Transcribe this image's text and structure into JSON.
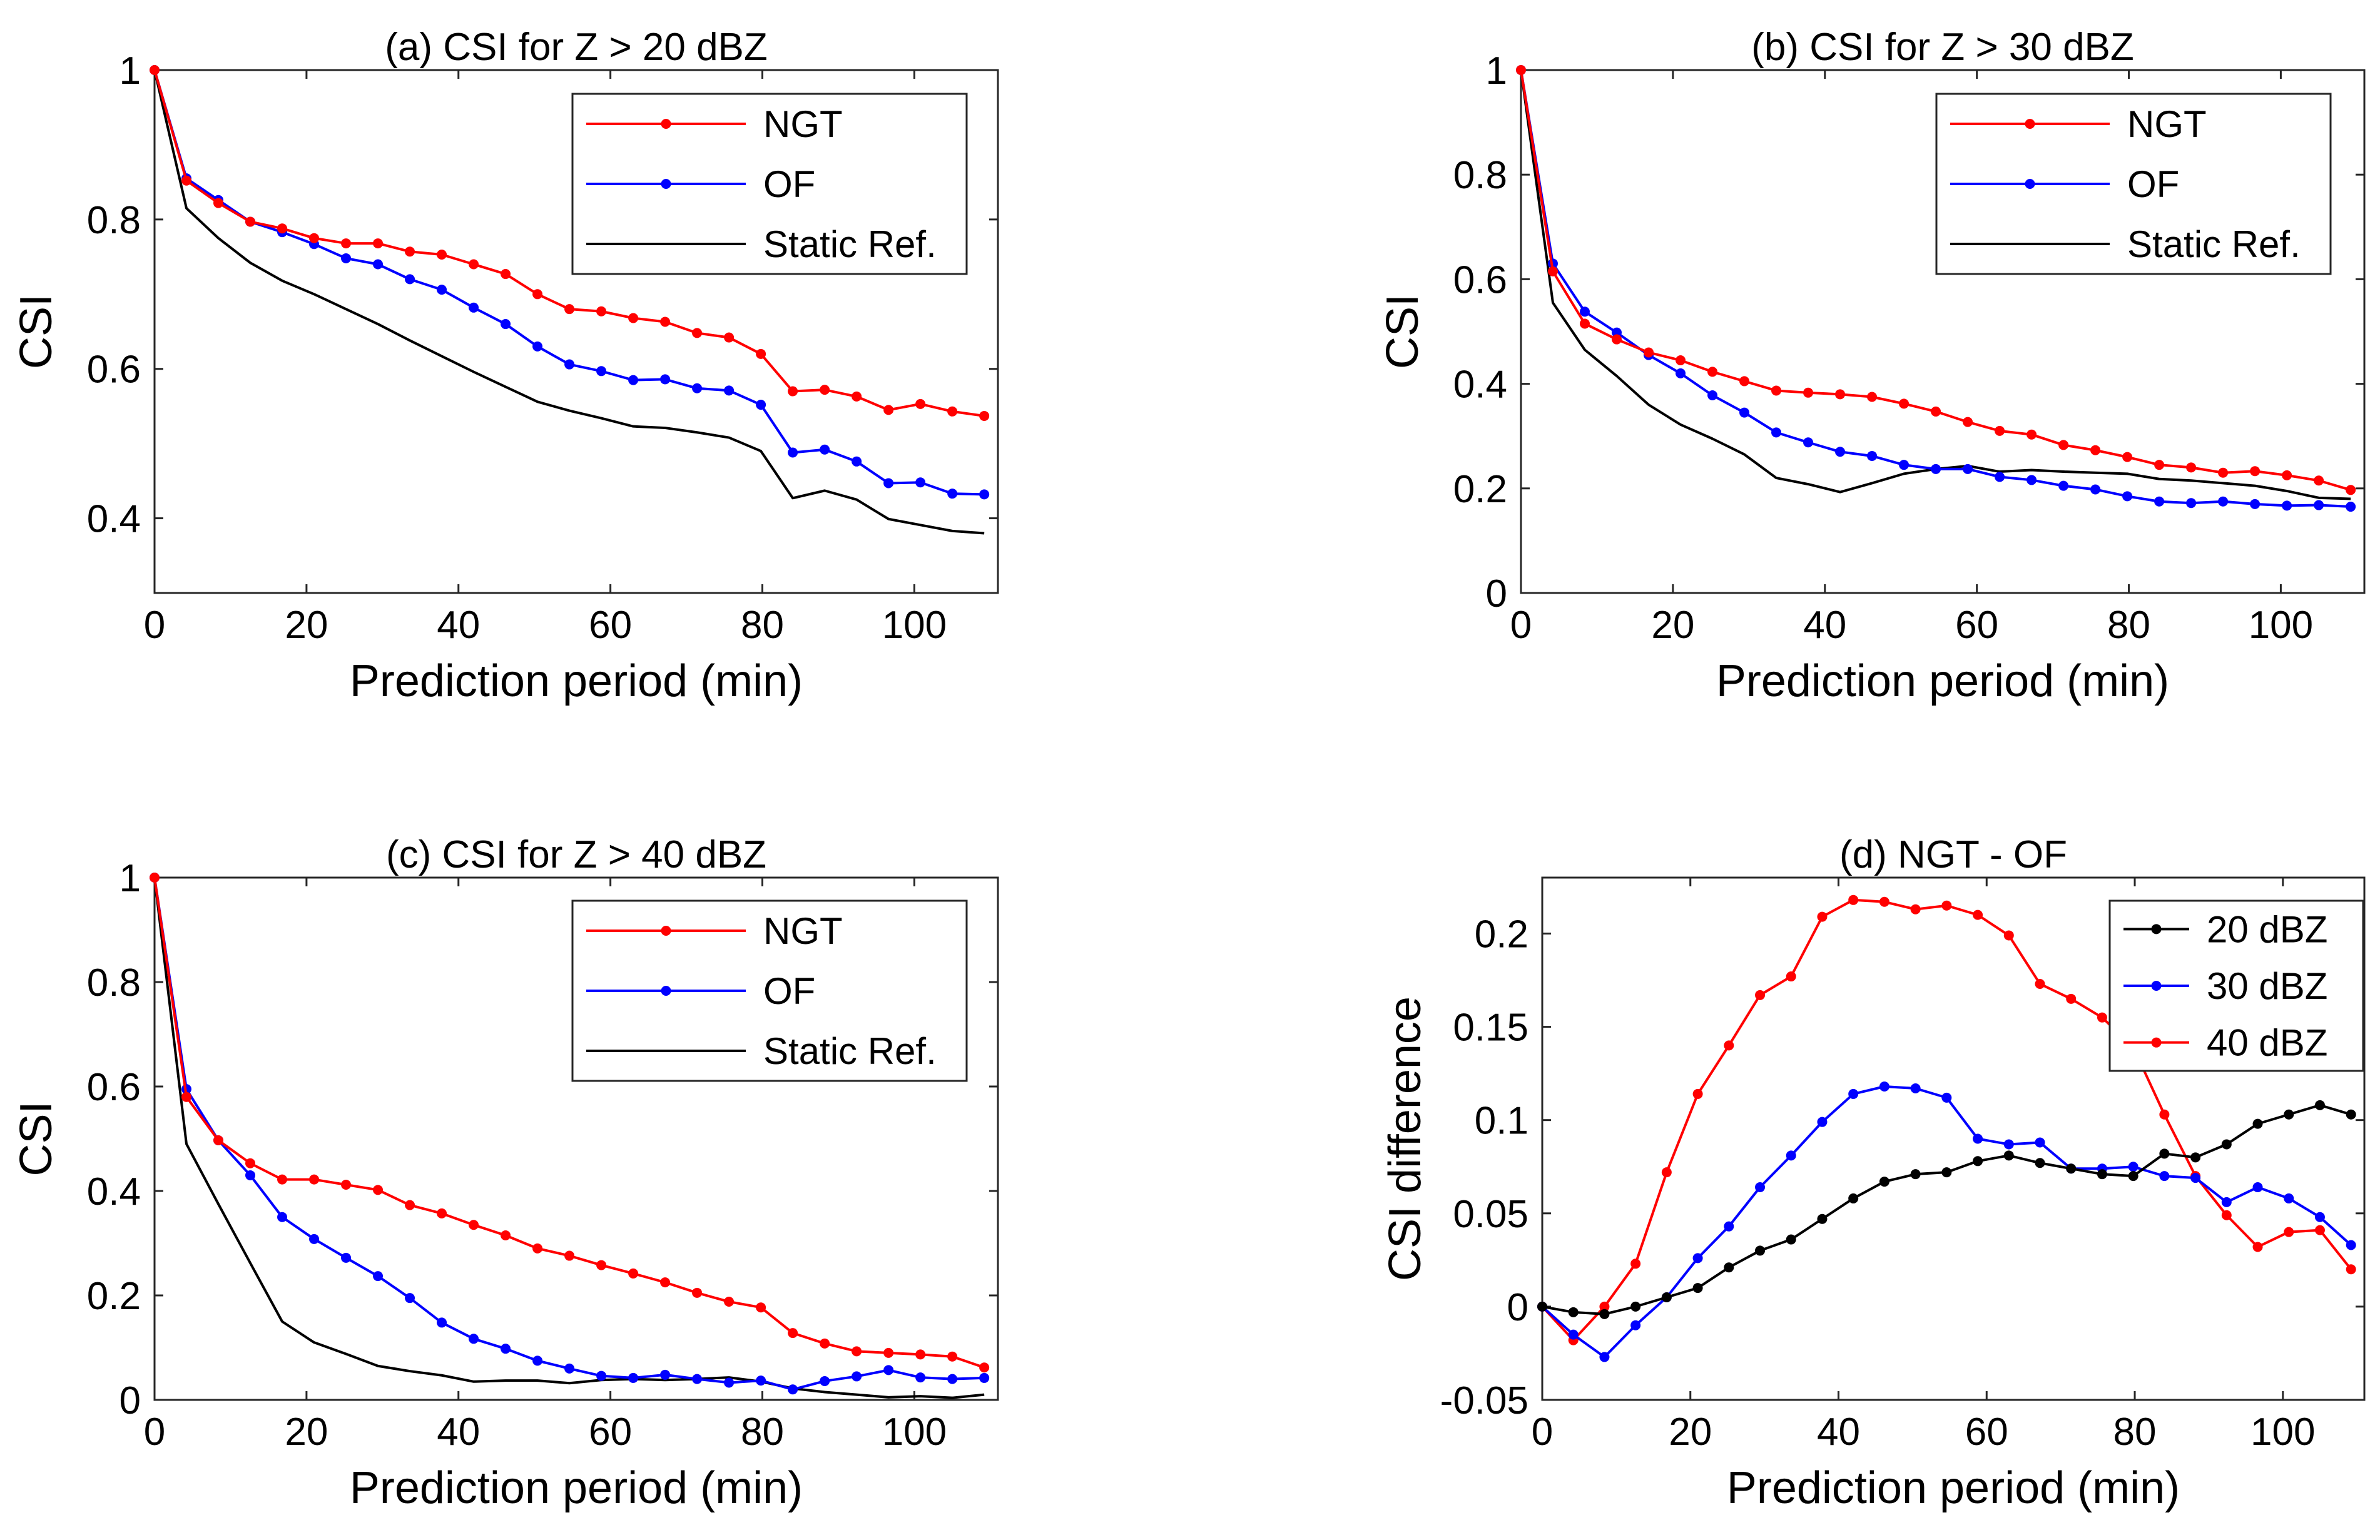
{
  "chart_data": [
    {
      "id": "a",
      "type": "line",
      "title": "(a) CSI for Z > 20 dBZ",
      "xlabel": "Prediction period (min)",
      "ylabel": "CSI",
      "xlim": [
        0,
        111
      ],
      "ylim": [
        0.3,
        1
      ],
      "xticks": [
        0,
        20,
        40,
        60,
        80,
        100
      ],
      "yticks": [
        0.4,
        0.6,
        0.8,
        1
      ],
      "ytick_labels": [
        "0.4",
        "0.6",
        "0.8",
        "1"
      ],
      "legend": "top-right",
      "x": [
        0,
        4.2,
        8.4,
        12.6,
        16.8,
        21,
        25.2,
        29.4,
        33.6,
        37.8,
        42,
        46.2,
        50.4,
        54.6,
        58.8,
        63,
        67.2,
        71.4,
        75.6,
        79.8,
        84,
        88.2,
        92.4,
        96.6,
        100.8,
        105,
        109.2
      ],
      "series": [
        {
          "name": "NGT",
          "color": "#ff0000",
          "markers": true,
          "values": [
            1.0,
            0.852,
            0.822,
            0.797,
            0.788,
            0.775,
            0.768,
            0.768,
            0.757,
            0.753,
            0.74,
            0.727,
            0.7,
            0.68,
            0.677,
            0.668,
            0.663,
            0.648,
            0.642,
            0.62,
            0.57,
            0.572,
            0.563,
            0.545,
            0.553,
            0.543,
            0.537
          ]
        },
        {
          "name": "OF",
          "color": "#0000ff",
          "markers": true,
          "values": [
            1.0,
            0.855,
            0.826,
            0.797,
            0.783,
            0.767,
            0.748,
            0.74,
            0.72,
            0.706,
            0.682,
            0.66,
            0.63,
            0.606,
            0.597,
            0.585,
            0.586,
            0.574,
            0.571,
            0.552,
            0.488,
            0.492,
            0.476,
            0.447,
            0.448,
            0.433,
            0.432
          ]
        },
        {
          "name": "Static Ref.",
          "color": "#000000",
          "markers": false,
          "values": [
            1.0,
            0.815,
            0.775,
            0.742,
            0.718,
            0.7,
            0.68,
            0.66,
            0.638,
            0.617,
            0.596,
            0.576,
            0.556,
            0.544,
            0.534,
            0.523,
            0.521,
            0.515,
            0.508,
            0.49,
            0.427,
            0.437,
            0.425,
            0.399,
            0.391,
            0.383,
            0.38
          ]
        }
      ]
    },
    {
      "id": "b",
      "type": "line",
      "title": "(b) CSI for Z > 30 dBZ",
      "xlabel": "Prediction period (min)",
      "ylabel": "CSI",
      "xlim": [
        0,
        111
      ],
      "ylim": [
        0,
        1
      ],
      "xticks": [
        0,
        20,
        40,
        60,
        80,
        100
      ],
      "yticks": [
        0,
        0.2,
        0.4,
        0.6,
        0.8,
        1
      ],
      "ytick_labels": [
        "0",
        "0.2",
        "0.4",
        "0.6",
        "0.8",
        "1"
      ],
      "legend": "top-right",
      "x": [
        0,
        4.2,
        8.4,
        12.6,
        16.8,
        21,
        25.2,
        29.4,
        33.6,
        37.8,
        42,
        46.2,
        50.4,
        54.6,
        58.8,
        63,
        67.2,
        71.4,
        75.6,
        79.8,
        84,
        88.2,
        92.4,
        96.6,
        100.8,
        105,
        109.2
      ],
      "series": [
        {
          "name": "NGT",
          "color": "#ff0000",
          "markers": true,
          "values": [
            1.0,
            0.615,
            0.515,
            0.485,
            0.46,
            0.445,
            0.423,
            0.405,
            0.387,
            0.383,
            0.38,
            0.375,
            0.362,
            0.347,
            0.327,
            0.31,
            0.303,
            0.283,
            0.273,
            0.26,
            0.245,
            0.24,
            0.23,
            0.233,
            0.225,
            0.215,
            0.197
          ]
        },
        {
          "name": "OF",
          "color": "#0000ff",
          "markers": true,
          "values": [
            1.0,
            0.63,
            0.538,
            0.498,
            0.455,
            0.42,
            0.378,
            0.345,
            0.307,
            0.288,
            0.27,
            0.262,
            0.245,
            0.237,
            0.237,
            0.222,
            0.216,
            0.205,
            0.198,
            0.185,
            0.175,
            0.172,
            0.175,
            0.17,
            0.167,
            0.168,
            0.165
          ]
        },
        {
          "name": "Static Ref.",
          "color": "#000000",
          "markers": false,
          "values": [
            1.0,
            0.555,
            0.465,
            0.415,
            0.36,
            0.322,
            0.295,
            0.265,
            0.22,
            0.208,
            0.193,
            0.21,
            0.228,
            0.237,
            0.243,
            0.232,
            0.235,
            0.232,
            0.23,
            0.228,
            0.218,
            0.215,
            0.21,
            0.205,
            0.195,
            0.182,
            0.18
          ]
        }
      ]
    },
    {
      "id": "c",
      "type": "line",
      "title": "(c) CSI for Z > 40 dBZ",
      "xlabel": "Prediction period (min)",
      "ylabel": "CSI",
      "xlim": [
        0,
        111
      ],
      "ylim": [
        0,
        1
      ],
      "xticks": [
        0,
        20,
        40,
        60,
        80,
        100
      ],
      "yticks": [
        0,
        0.2,
        0.4,
        0.6,
        0.8,
        1
      ],
      "ytick_labels": [
        "0",
        "0.2",
        "0.4",
        "0.6",
        "0.8",
        "1"
      ],
      "legend": "top-right",
      "x": [
        0,
        4.2,
        8.4,
        12.6,
        16.8,
        21,
        25.2,
        29.4,
        33.6,
        37.8,
        42,
        46.2,
        50.4,
        54.6,
        58.8,
        63,
        67.2,
        71.4,
        75.6,
        79.8,
        84,
        88.2,
        92.4,
        96.6,
        100.8,
        105,
        109.2
      ],
      "series": [
        {
          "name": "NGT",
          "color": "#ff0000",
          "markers": true,
          "values": [
            1.0,
            0.58,
            0.497,
            0.453,
            0.422,
            0.422,
            0.412,
            0.402,
            0.373,
            0.357,
            0.335,
            0.315,
            0.29,
            0.276,
            0.258,
            0.242,
            0.225,
            0.205,
            0.188,
            0.177,
            0.128,
            0.108,
            0.093,
            0.09,
            0.087,
            0.083,
            0.062
          ]
        },
        {
          "name": "OF",
          "color": "#0000ff",
          "markers": true,
          "values": [
            1.0,
            0.595,
            0.497,
            0.43,
            0.35,
            0.308,
            0.272,
            0.237,
            0.195,
            0.148,
            0.117,
            0.098,
            0.075,
            0.06,
            0.046,
            0.042,
            0.048,
            0.04,
            0.033,
            0.037,
            0.02,
            0.036,
            0.045,
            0.057,
            0.043,
            0.04,
            0.042
          ]
        },
        {
          "name": "Static Ref.",
          "color": "#000000",
          "markers": false,
          "values": [
            1.0,
            0.49,
            0.375,
            0.262,
            0.15,
            0.11,
            0.088,
            0.065,
            0.055,
            0.047,
            0.035,
            0.037,
            0.037,
            0.032,
            0.038,
            0.04,
            0.038,
            0.04,
            0.043,
            0.035,
            0.022,
            0.015,
            0.01,
            0.005,
            0.007,
            0.004,
            0.01
          ]
        }
      ]
    },
    {
      "id": "d",
      "type": "line",
      "title": "(d) NGT - OF",
      "xlabel": "Prediction period (min)",
      "ylabel": "CSI difference",
      "xlim": [
        0,
        111
      ],
      "ylim": [
        -0.05,
        0.23
      ],
      "xticks": [
        0,
        20,
        40,
        60,
        80,
        100
      ],
      "yticks": [
        -0.05,
        0,
        0.05,
        0.1,
        0.15,
        0.2
      ],
      "ytick_labels": [
        "-0.05",
        "0",
        "0.05",
        "0.1",
        "0.15",
        "0.2"
      ],
      "legend": "top-right",
      "x": [
        0,
        4.2,
        8.4,
        12.6,
        16.8,
        21,
        25.2,
        29.4,
        33.6,
        37.8,
        42,
        46.2,
        50.4,
        54.6,
        58.8,
        63,
        67.2,
        71.4,
        75.6,
        79.8,
        84,
        88.2,
        92.4,
        96.6,
        100.8,
        105,
        109.2
      ],
      "series": [
        {
          "name": "20 dBZ",
          "color": "#000000",
          "markers": true,
          "values": [
            0,
            -0.003,
            -0.004,
            0.0,
            0.005,
            0.01,
            0.021,
            0.03,
            0.036,
            0.047,
            0.058,
            0.067,
            0.071,
            0.072,
            0.078,
            0.081,
            0.077,
            0.074,
            0.071,
            0.07,
            0.082,
            0.08,
            0.087,
            0.098,
            0.103,
            0.108,
            0.103
          ]
        },
        {
          "name": "30 dBZ",
          "color": "#0000ff",
          "markers": true,
          "values": [
            0,
            -0.015,
            -0.027,
            -0.01,
            0.005,
            0.026,
            0.043,
            0.064,
            0.081,
            0.099,
            0.114,
            0.118,
            0.117,
            0.112,
            0.09,
            0.087,
            0.088,
            0.074,
            0.074,
            0.075,
            0.07,
            0.069,
            0.056,
            0.064,
            0.058,
            0.048,
            0.033
          ]
        },
        {
          "name": "40 dBZ",
          "color": "#ff0000",
          "markers": true,
          "values": [
            0,
            -0.018,
            0.0,
            0.023,
            0.072,
            0.114,
            0.14,
            0.167,
            0.177,
            0.209,
            0.218,
            0.217,
            0.213,
            0.215,
            0.21,
            0.199,
            0.173,
            0.165,
            0.155,
            0.139,
            0.103,
            0.07,
            0.049,
            0.032,
            0.04,
            0.041,
            0.02
          ]
        }
      ]
    }
  ]
}
